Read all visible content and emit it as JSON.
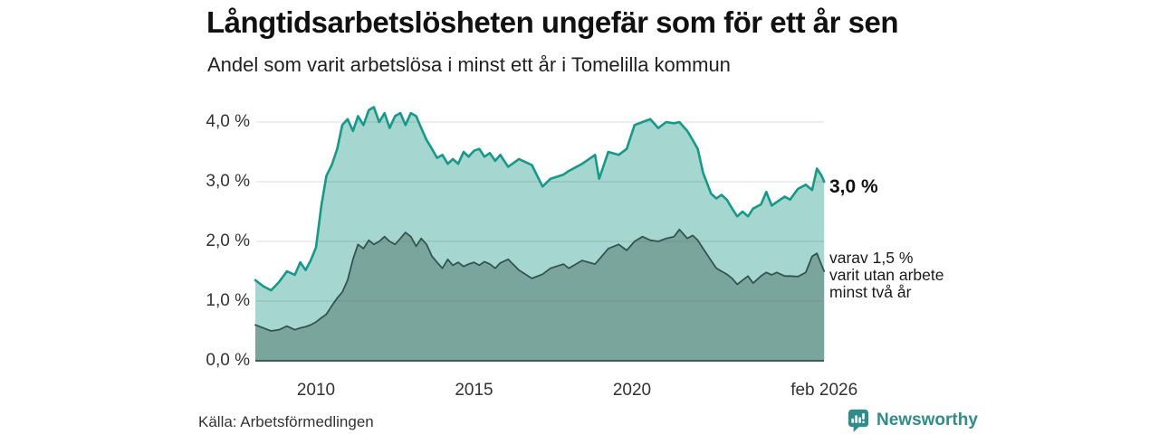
{
  "header": {
    "title": "Långtidsarbetslösheten ungefär som för ett år sen",
    "subtitle": "Andel som varit arbetslösa i minst ett år i Tomelilla kommun"
  },
  "chart_data": {
    "type": "area",
    "title": "Långtidsarbetslösheten ungefär som för ett år sen",
    "subtitle": "Andel som varit arbetslösa i minst ett år i Tomelilla kommun",
    "x_unit": "decimal_year",
    "xlim": [
      2008.08,
      2026.08
    ],
    "ylim": [
      0,
      4.4
    ],
    "grid": "horizontal",
    "x": [
      2008.08,
      2008.33,
      2008.58,
      2008.83,
      2009.08,
      2009.33,
      2009.5,
      2009.67,
      2009.83,
      2010.0,
      2010.17,
      2010.33,
      2010.5,
      2010.67,
      2010.83,
      2011.0,
      2011.17,
      2011.33,
      2011.5,
      2011.67,
      2011.83,
      2012.0,
      2012.17,
      2012.33,
      2012.5,
      2012.67,
      2012.83,
      2013.0,
      2013.17,
      2013.33,
      2013.5,
      2013.67,
      2013.83,
      2014.0,
      2014.17,
      2014.33,
      2014.5,
      2014.67,
      2014.83,
      2015.0,
      2015.17,
      2015.33,
      2015.5,
      2015.67,
      2015.83,
      2016.08,
      2016.42,
      2016.83,
      2017.17,
      2017.42,
      2017.83,
      2018.0,
      2018.42,
      2018.83,
      2018.96,
      2019.25,
      2019.58,
      2019.83,
      2020.08,
      2020.33,
      2020.58,
      2020.83,
      2021.08,
      2021.33,
      2021.5,
      2021.75,
      2021.92,
      2022.08,
      2022.25,
      2022.5,
      2022.67,
      2022.83,
      2023.0,
      2023.17,
      2023.33,
      2023.5,
      2023.67,
      2023.83,
      2024.08,
      2024.25,
      2024.42,
      2024.58,
      2024.83,
      2025.0,
      2025.25,
      2025.5,
      2025.7,
      2025.85,
      2026.0,
      2026.08
    ],
    "series": [
      {
        "name": "Arbetslösa minst ett år",
        "end_value_pct": 3.0,
        "stroke": "#17998a",
        "fill": "#a5d6cf",
        "values": [
          1.35,
          1.25,
          1.18,
          1.32,
          1.5,
          1.44,
          1.65,
          1.52,
          1.68,
          1.9,
          2.6,
          3.1,
          3.28,
          3.55,
          3.95,
          4.05,
          3.85,
          4.1,
          3.95,
          4.2,
          4.25,
          4.0,
          4.15,
          3.9,
          4.1,
          4.15,
          3.95,
          4.15,
          4.1,
          3.9,
          3.7,
          3.55,
          3.4,
          3.45,
          3.3,
          3.38,
          3.3,
          3.5,
          3.42,
          3.52,
          3.55,
          3.42,
          3.48,
          3.35,
          3.45,
          3.25,
          3.38,
          3.28,
          2.92,
          3.05,
          3.12,
          3.18,
          3.3,
          3.45,
          3.05,
          3.5,
          3.45,
          3.55,
          3.95,
          4.0,
          4.05,
          3.9,
          4.0,
          3.98,
          4.0,
          3.85,
          3.7,
          3.55,
          3.15,
          2.8,
          2.72,
          2.78,
          2.7,
          2.55,
          2.42,
          2.5,
          2.42,
          2.55,
          2.62,
          2.83,
          2.6,
          2.66,
          2.75,
          2.7,
          2.88,
          2.95,
          2.86,
          3.22,
          3.1,
          3.0
        ]
      },
      {
        "name": "Varav utan arbete minst två år",
        "end_value_pct": 1.5,
        "stroke": "#35544f",
        "fill": "#7aa59d",
        "values": [
          0.6,
          0.55,
          0.5,
          0.52,
          0.58,
          0.52,
          0.55,
          0.57,
          0.6,
          0.65,
          0.72,
          0.78,
          0.92,
          1.05,
          1.15,
          1.35,
          1.7,
          1.95,
          1.88,
          2.02,
          1.95,
          2.0,
          2.08,
          2.0,
          1.95,
          2.05,
          2.15,
          2.08,
          1.92,
          2.05,
          1.95,
          1.75,
          1.65,
          1.55,
          1.7,
          1.6,
          1.65,
          1.58,
          1.62,
          1.65,
          1.6,
          1.66,
          1.62,
          1.55,
          1.64,
          1.7,
          1.52,
          1.38,
          1.45,
          1.55,
          1.62,
          1.55,
          1.68,
          1.62,
          1.7,
          1.88,
          1.95,
          1.85,
          2.0,
          2.08,
          2.02,
          2.0,
          2.05,
          2.08,
          2.2,
          2.05,
          2.1,
          2.02,
          1.88,
          1.68,
          1.55,
          1.5,
          1.45,
          1.38,
          1.28,
          1.35,
          1.42,
          1.3,
          1.42,
          1.48,
          1.44,
          1.48,
          1.42,
          1.42,
          1.41,
          1.48,
          1.75,
          1.8,
          1.6,
          1.5
        ]
      }
    ],
    "yticks": [
      {
        "value": 0,
        "label": "0,0 %"
      },
      {
        "value": 1,
        "label": "1,0 %"
      },
      {
        "value": 2,
        "label": "2,0 %"
      },
      {
        "value": 3,
        "label": "3,0 %"
      },
      {
        "value": 4,
        "label": "4,0 %"
      }
    ],
    "xticks": [
      {
        "value": 2010,
        "label": "2010"
      },
      {
        "value": 2015,
        "label": "2015"
      },
      {
        "value": 2020,
        "label": "2020"
      },
      {
        "value": 2026.08,
        "label": "feb 2026"
      }
    ],
    "annotations": {
      "primary_label": "3,0 %",
      "secondary_lines": [
        "varav 1,5 %",
        "varit utan arbete",
        "minst två år"
      ]
    },
    "colors": {
      "grid": "#d9d9d9",
      "axis_line": "#3d5c56"
    }
  },
  "footer": {
    "source": "Källa: Arbetsförmedlingen",
    "brand": "Newsworthy",
    "brand_color": "#2f8c89"
  }
}
